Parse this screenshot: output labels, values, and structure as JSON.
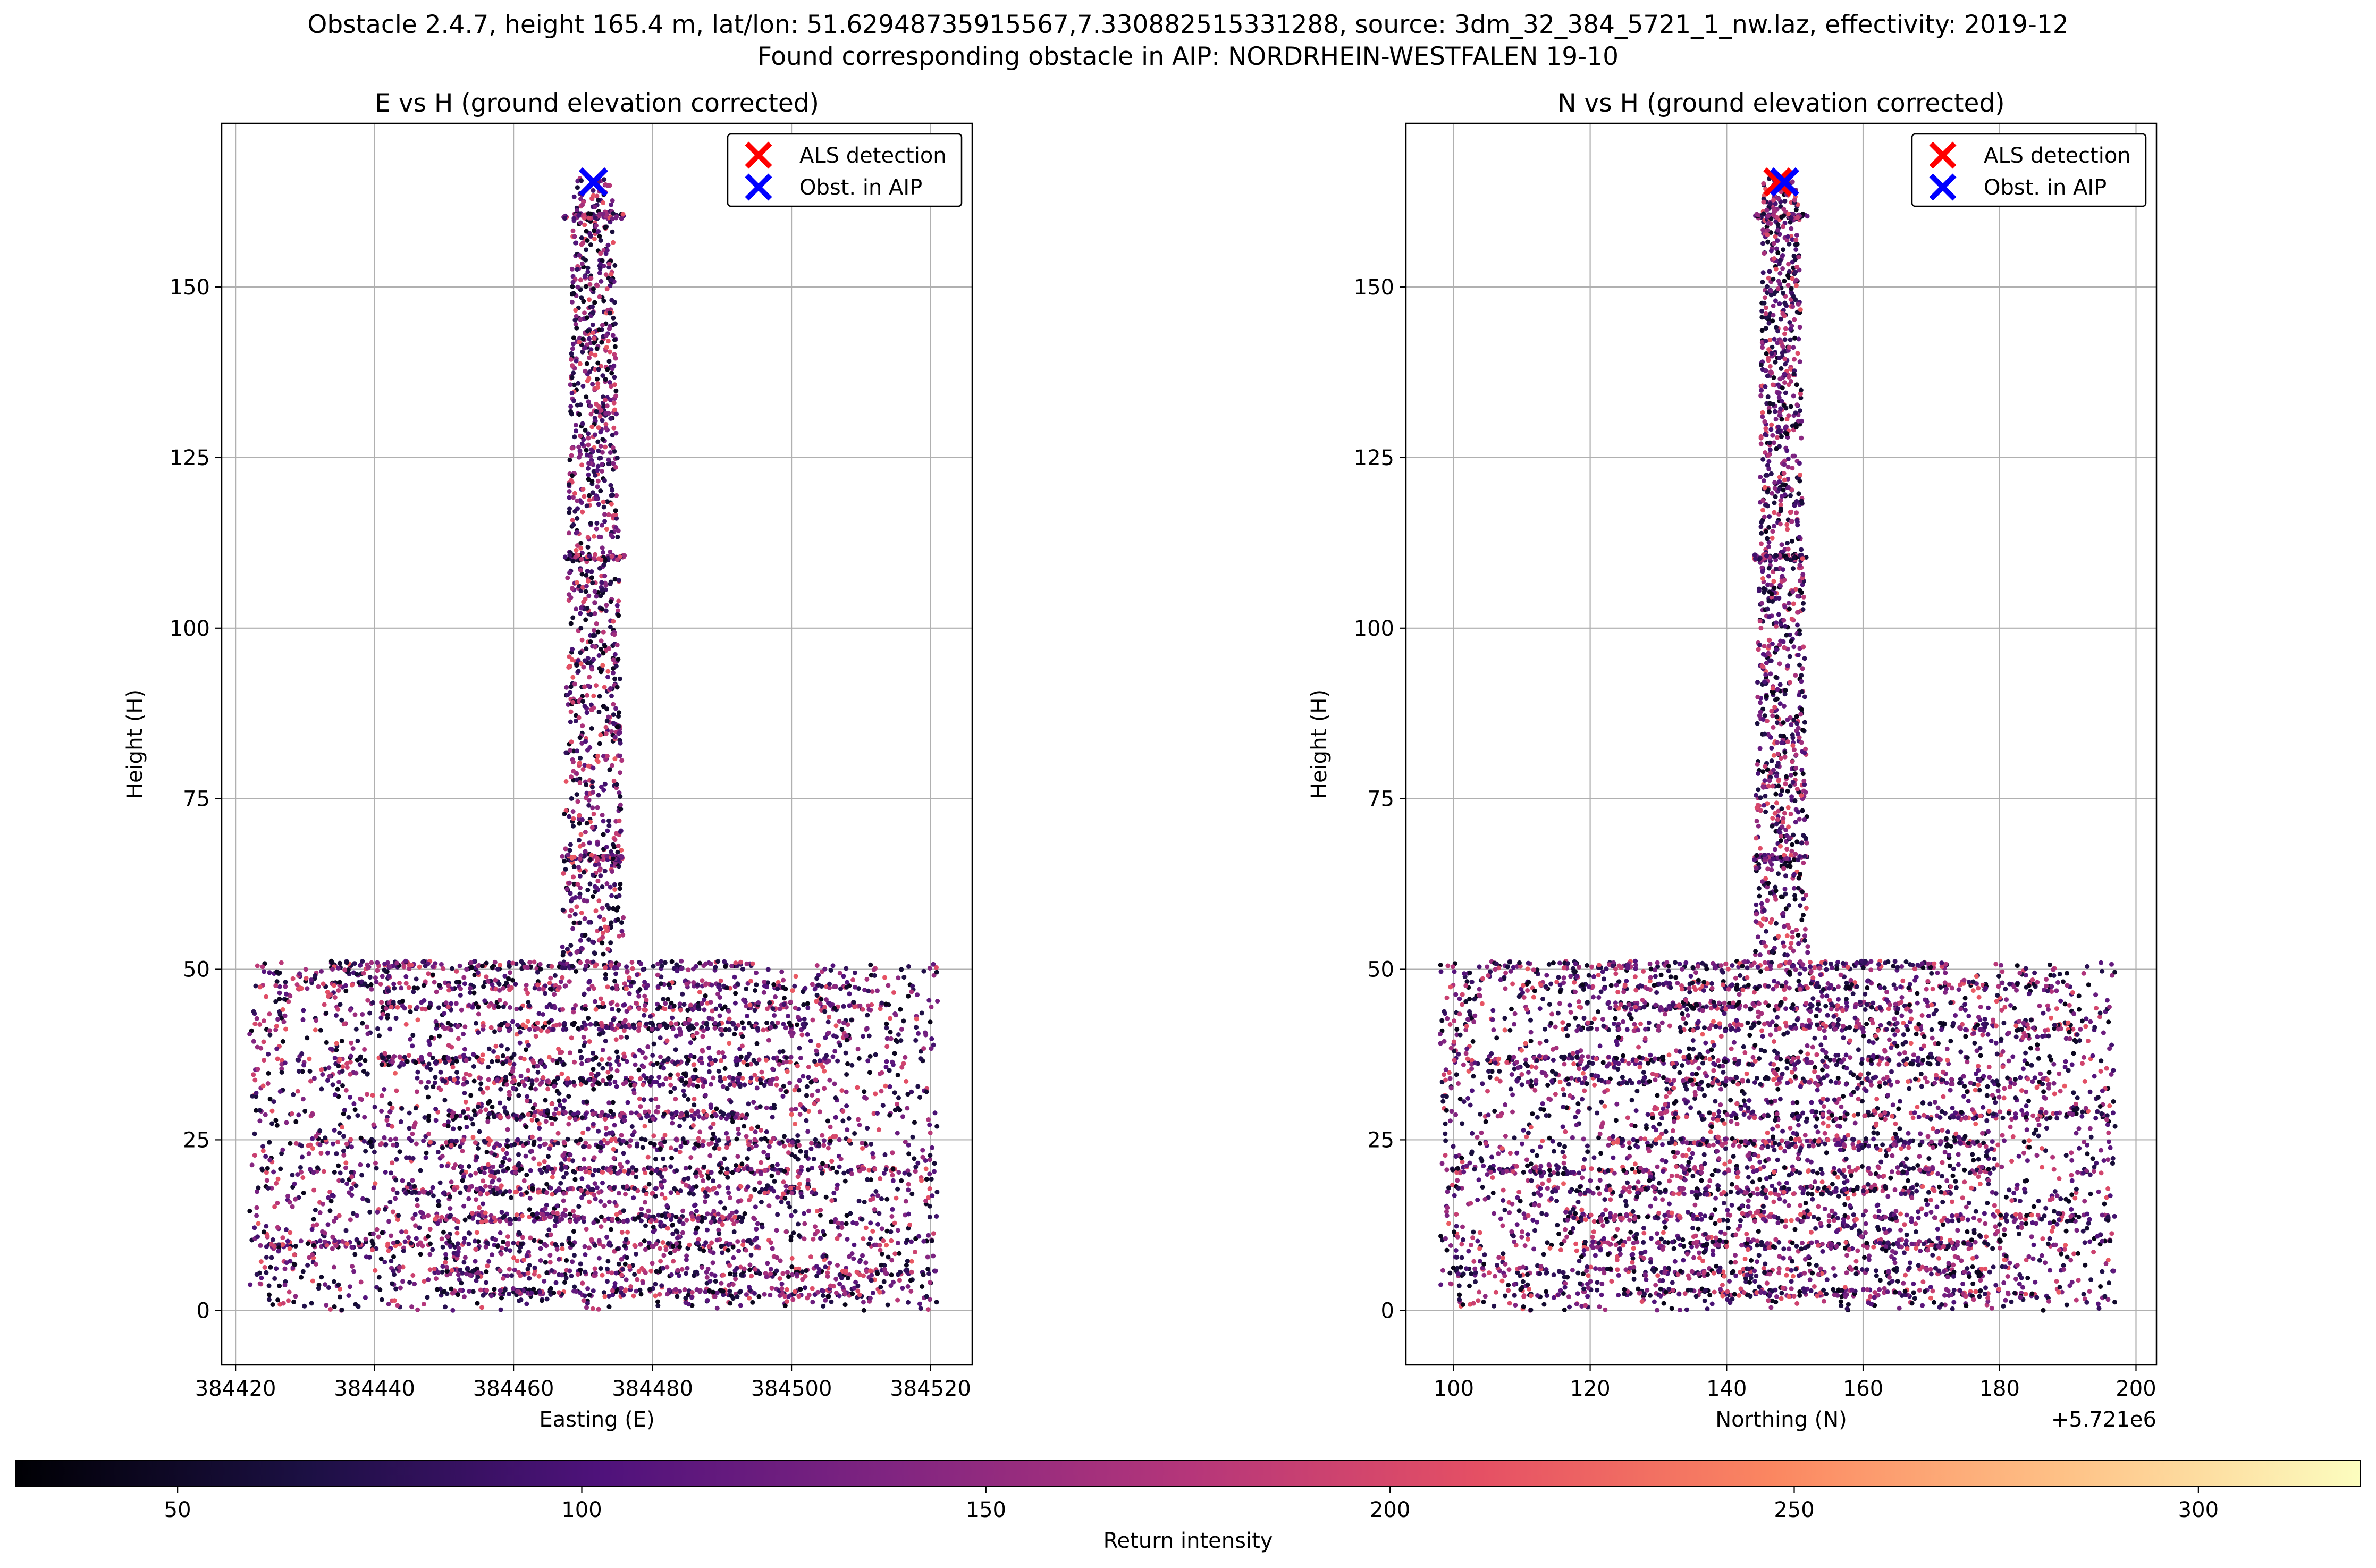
{
  "figure": {
    "suptitle_line1": "Obstacle 2.4.7, height 165.4 m, lat/lon: 51.62948735915567,7.330882515331288, source: 3dm_32_384_5721_1_nw.laz, effectivity: 2019-12",
    "suptitle_line2": "Found corresponding obstacle in AIP: NORDRHEIN-WESTFALEN 19-10"
  },
  "chart_data": [
    {
      "type": "scatter",
      "title": "E vs H (ground elevation corrected)",
      "xlabel": "Easting (E)",
      "ylabel": "Height (H)",
      "xlim": [
        384418,
        384526
      ],
      "ylim": [
        -8,
        174
      ],
      "xticks": [
        384420,
        384440,
        384460,
        384480,
        384500,
        384520
      ],
      "yticks": [
        0,
        25,
        50,
        75,
        100,
        125,
        150
      ],
      "x_offset_label": "",
      "grid": true,
      "legend_position": "upper right",
      "legend": [
        {
          "label": "ALS detection",
          "marker": "x",
          "color": "#ff0000"
        },
        {
          "label": "Obst. in AIP",
          "marker": "x",
          "color": "#0000ff"
        }
      ],
      "markers": [
        {
          "name": "ALS detection",
          "x": 384471.5,
          "y": 165.4,
          "color": "#ff0000"
        },
        {
          "name": "Obst. in AIP",
          "x": 384471.5,
          "y": 165.4,
          "color": "#0000ff"
        }
      ],
      "point_cloud": {
        "colormap": "magma",
        "intensity_range": [
          30,
          320
        ],
        "tower": {
          "x_center": 384471.5,
          "half_width": 4.5,
          "y_base": 52,
          "y_top": 166
        },
        "base": {
          "x_min": 384422,
          "x_max": 384521,
          "y_min": 0,
          "y_max": 51
        }
      }
    },
    {
      "type": "scatter",
      "title": "N vs H (ground elevation corrected)",
      "xlabel": "Northing (N)",
      "ylabel": "Height (H)",
      "xlim": [
        93,
        203
      ],
      "ylim": [
        -8,
        174
      ],
      "xticks": [
        100,
        120,
        140,
        160,
        180,
        200
      ],
      "yticks": [
        0,
        25,
        50,
        75,
        100,
        125,
        150
      ],
      "x_offset_label": "+5.721e6",
      "grid": true,
      "legend_position": "upper right",
      "legend": [
        {
          "label": "ALS detection",
          "marker": "x",
          "color": "#ff0000"
        },
        {
          "label": "Obst. in AIP",
          "marker": "x",
          "color": "#0000ff"
        }
      ],
      "markers": [
        {
          "name": "ALS detection",
          "x": 147.5,
          "y": 165.4,
          "color": "#ff0000"
        },
        {
          "name": "Obst. in AIP",
          "x": 148.5,
          "y": 165.4,
          "color": "#0000ff"
        }
      ],
      "point_cloud": {
        "colormap": "magma",
        "intensity_range": [
          30,
          320
        ],
        "tower": {
          "x_center": 148,
          "half_width": 4,
          "y_base": 52,
          "y_top": 166
        },
        "base": {
          "x_min": 98,
          "x_max": 197,
          "y_min": 0,
          "y_max": 51
        }
      }
    }
  ],
  "colorbar": {
    "label": "Return intensity",
    "range": [
      30,
      320
    ],
    "ticks": [
      50,
      100,
      150,
      200,
      250,
      300
    ],
    "colormap": "magma"
  }
}
